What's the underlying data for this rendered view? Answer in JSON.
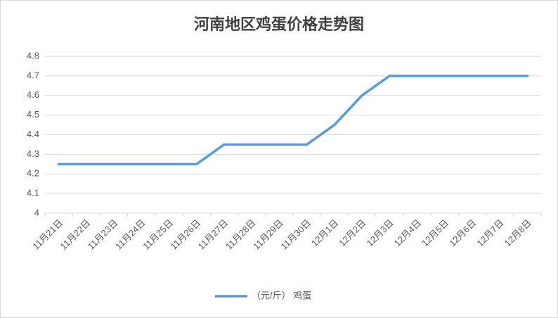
{
  "chart_data": {
    "type": "line",
    "title": "河南地区鸡蛋价格走势图",
    "categories": [
      "11月21日",
      "11月22日",
      "11月23日",
      "11月24日",
      "11月25日",
      "11月26日",
      "11月27日",
      "11月28日",
      "11月29日",
      "11月30日",
      "12月1日",
      "12月2日",
      "12月3日",
      "12月4日",
      "12月5日",
      "12月6日",
      "12月7日",
      "12月8日"
    ],
    "series": [
      {
        "name": "（元/斤） 鸡蛋",
        "color": "#5b9bd5",
        "values": [
          4.25,
          4.25,
          4.25,
          4.25,
          4.25,
          4.25,
          4.35,
          4.35,
          4.35,
          4.35,
          4.45,
          4.6,
          4.7,
          4.7,
          4.7,
          4.7,
          4.7,
          4.7
        ]
      }
    ],
    "ylim": [
      4,
      4.8
    ],
    "yticks": [
      4,
      4.1,
      4.2,
      4.3,
      4.4,
      4.5,
      4.6,
      4.7,
      4.8
    ],
    "grid": true,
    "legend": "bottom"
  }
}
